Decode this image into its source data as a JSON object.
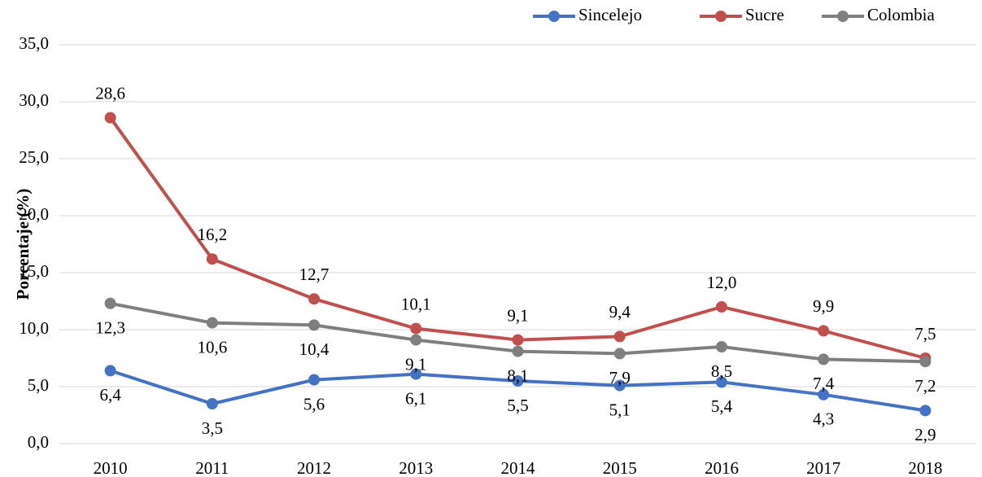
{
  "chart_data": {
    "type": "line",
    "y_label": "Porcentaje (%)",
    "categories": [
      "2010",
      "2011",
      "2012",
      "2013",
      "2014",
      "2015",
      "2016",
      "2017",
      "2018"
    ],
    "series": [
      {
        "name": "Sincelejo",
        "color": "#4472c4",
        "values": [
          6.4,
          3.5,
          5.6,
          6.1,
          5.5,
          5.1,
          5.4,
          4.3,
          2.9
        ],
        "value_labels": [
          "6,4",
          "3,5",
          "5,6",
          "6,1",
          "5,5",
          "5,1",
          "5,4",
          "4,3",
          "2,9"
        ]
      },
      {
        "name": "Sucre",
        "color": "#c0504d",
        "values": [
          28.6,
          16.2,
          12.7,
          10.1,
          9.1,
          9.4,
          12.0,
          9.9,
          7.5
        ],
        "value_labels": [
          "28,6",
          "16,2",
          "12,7",
          "10,1",
          "9,1",
          "9,4",
          "12,0",
          "9,9",
          "7,5"
        ]
      },
      {
        "name": "Colombia",
        "color": "#7f7f7f",
        "values": [
          12.3,
          10.6,
          10.4,
          9.1,
          8.1,
          7.9,
          8.5,
          7.4,
          7.2
        ],
        "value_labels": [
          "12,3",
          "10,6",
          "10,4",
          "9,1",
          "8,1",
          "7,9",
          "8,5",
          "7,4",
          "7,2"
        ]
      }
    ],
    "ylim": [
      0,
      35
    ],
    "yticks": [
      {
        "value": 0,
        "label": "0,0"
      },
      {
        "value": 5,
        "label": "5,0"
      },
      {
        "value": 10,
        "label": "10,0"
      },
      {
        "value": 15,
        "label": "15,0"
      },
      {
        "value": 20,
        "label": "20,0"
      },
      {
        "value": 25,
        "label": "25,0"
      },
      {
        "value": 30,
        "label": "30,0"
      },
      {
        "value": 35,
        "label": "35,0"
      }
    ],
    "grid": true,
    "legend": "top-right"
  }
}
